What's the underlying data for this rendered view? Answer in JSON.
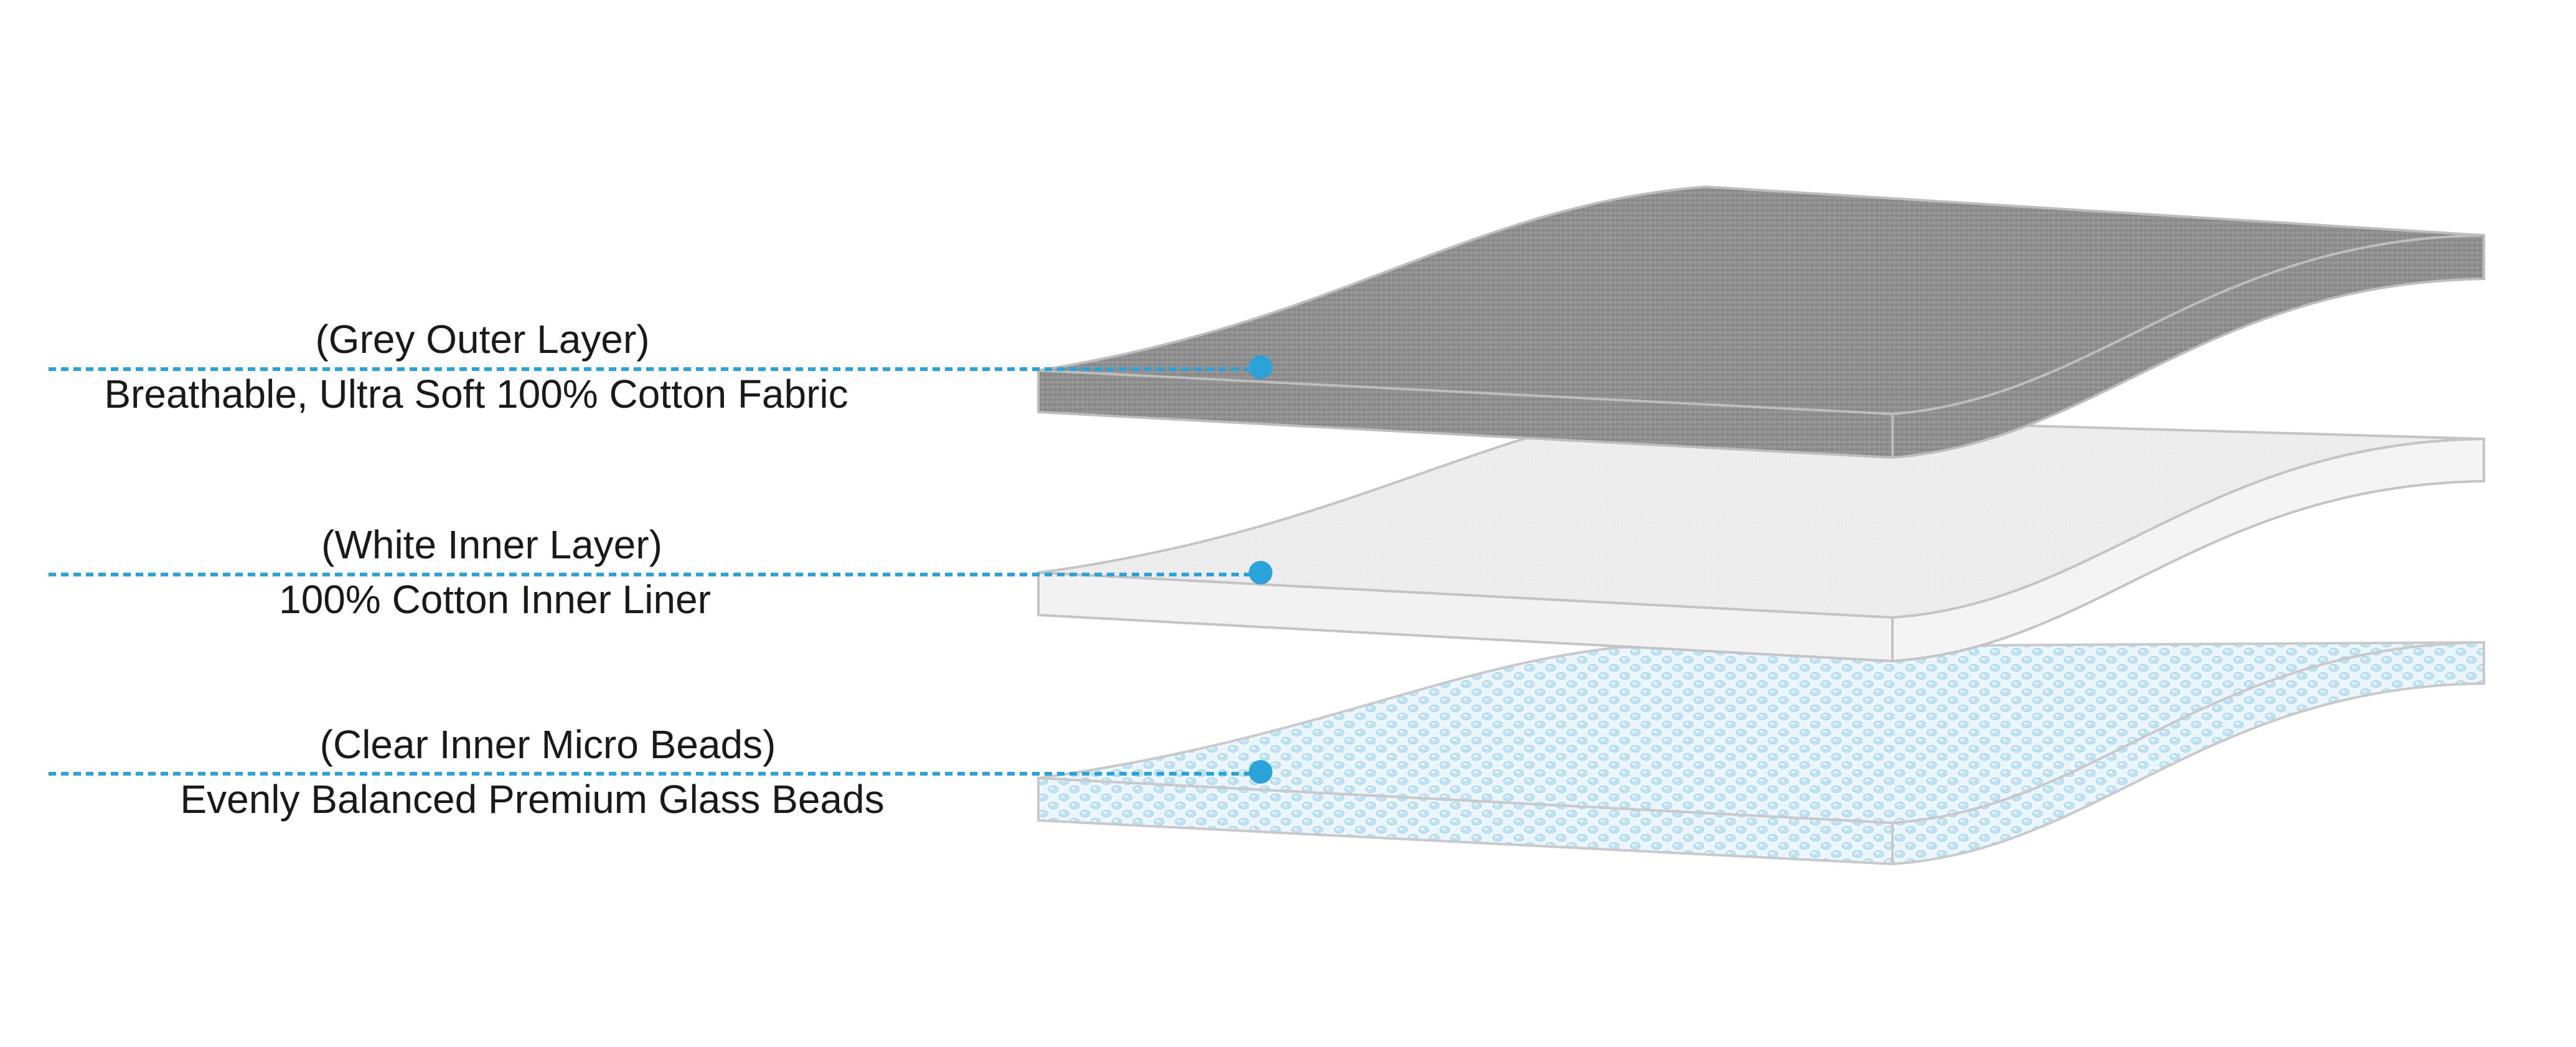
{
  "layers": [
    {
      "title": "(Grey Outer Layer)",
      "description": "Breathable, Ultra Soft 100% Cotton Fabric"
    },
    {
      "title": "(White Inner Layer)",
      "description": "100% Cotton Inner Liner"
    },
    {
      "title": "(Clear Inner Micro Beads)",
      "description": "Evenly Balanced Premium Glass Beads"
    }
  ],
  "colors": {
    "leader_line": "#2aa3db",
    "grey_layer_top": "#8e8e8e",
    "grey_layer_side": "#9a9a9a",
    "white_layer_top": "#eeeeee",
    "white_layer_side": "#f3f3f3",
    "bead_layer_top": "#d6eef8",
    "bead_layer_side": "#e3f3fa",
    "edge_stroke": "#c4c4c4"
  }
}
